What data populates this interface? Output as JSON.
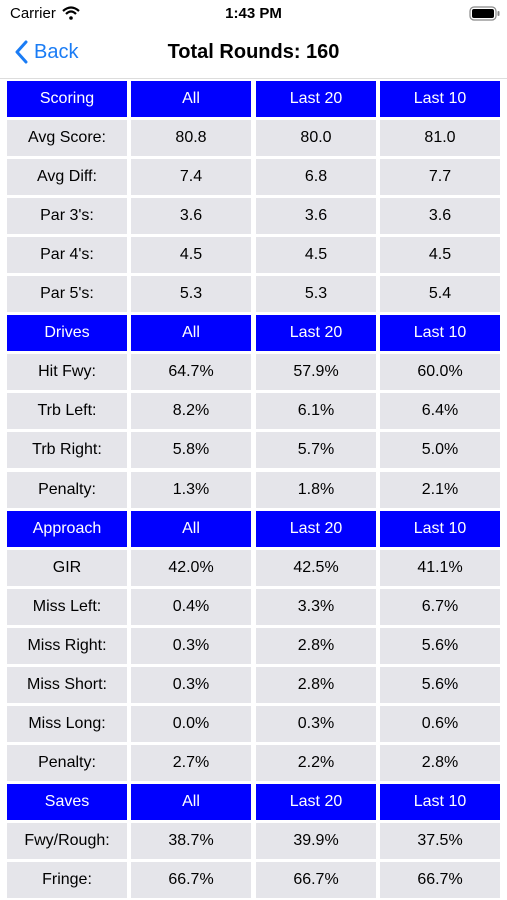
{
  "status_bar": {
    "carrier": "Carrier",
    "time": "1:43 PM"
  },
  "nav": {
    "back": "Back",
    "title": "Total Rounds: 160"
  },
  "sections": [
    {
      "header": [
        "Scoring",
        "All",
        "Last 20",
        "Last 10"
      ],
      "rows": [
        [
          "Avg Score:",
          "80.8",
          "80.0",
          "81.0"
        ],
        [
          "Avg Diff:",
          "7.4",
          "6.8",
          "7.7"
        ],
        [
          "Par 3's:",
          "3.6",
          "3.6",
          "3.6"
        ],
        [
          "Par 4's:",
          "4.5",
          "4.5",
          "4.5"
        ],
        [
          "Par 5's:",
          "5.3",
          "5.3",
          "5.4"
        ]
      ]
    },
    {
      "header": [
        "Drives",
        "All",
        "Last 20",
        "Last 10"
      ],
      "rows": [
        [
          "Hit Fwy:",
          "64.7%",
          "57.9%",
          "60.0%"
        ],
        [
          "Trb Left:",
          "8.2%",
          "6.1%",
          "6.4%"
        ],
        [
          "Trb Right:",
          "5.8%",
          "5.7%",
          "5.0%"
        ],
        [
          "Penalty:",
          "1.3%",
          "1.8%",
          "2.1%"
        ]
      ]
    },
    {
      "header": [
        "Approach",
        "All",
        "Last 20",
        "Last 10"
      ],
      "rows": [
        [
          "GIR",
          "42.0%",
          "42.5%",
          "41.1%"
        ],
        [
          "Miss Left:",
          "0.4%",
          "3.3%",
          "6.7%"
        ],
        [
          "Miss Right:",
          "0.3%",
          "2.8%",
          "5.6%"
        ],
        [
          "Miss Short:",
          "0.3%",
          "2.8%",
          "5.6%"
        ],
        [
          "Miss Long:",
          "0.0%",
          "0.3%",
          "0.6%"
        ],
        [
          "Penalty:",
          "2.7%",
          "2.2%",
          "2.8%"
        ]
      ]
    },
    {
      "header": [
        "Saves",
        "All",
        "Last 20",
        "Last 10"
      ],
      "rows": [
        [
          "Fwy/Rough:",
          "38.7%",
          "39.9%",
          "37.5%"
        ],
        [
          "Fringe:",
          "66.7%",
          "66.7%",
          "66.7%"
        ]
      ]
    }
  ]
}
